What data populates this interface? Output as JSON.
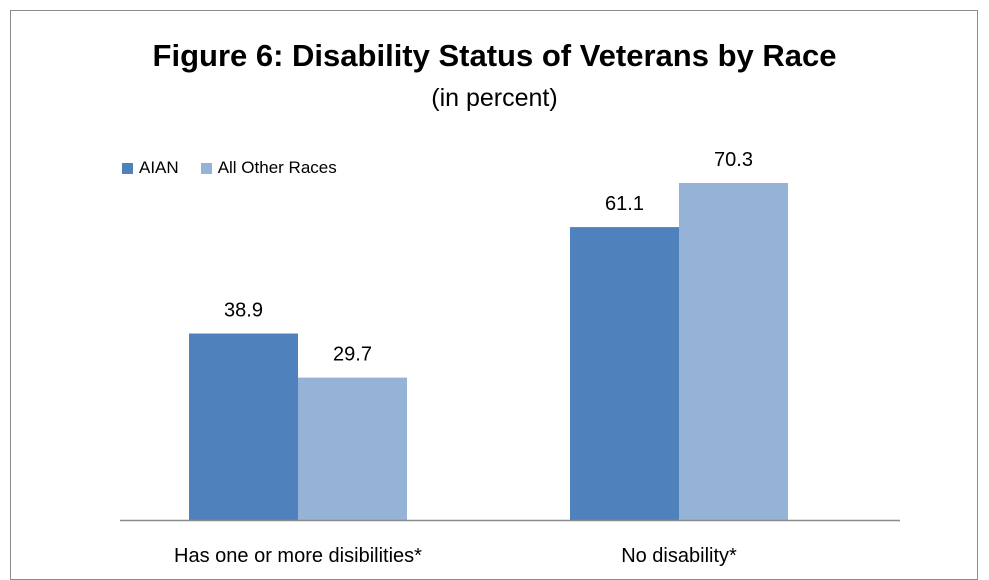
{
  "chart_data": {
    "type": "bar",
    "title": "Figure 6: Disability Status of Veterans by Race",
    "subtitle": "(in percent)",
    "categories": [
      "Has one or more disibilities*",
      "No disability*"
    ],
    "series": [
      {
        "name": "AIAN",
        "values": [
          38.9,
          61.1
        ],
        "color": "#4f81bd"
      },
      {
        "name": "All Other Races",
        "values": [
          29.7,
          70.3
        ],
        "color": "#95b3d7"
      }
    ],
    "ylim": [
      0,
      80
    ],
    "grid": false,
    "legend_position": "top-left"
  }
}
